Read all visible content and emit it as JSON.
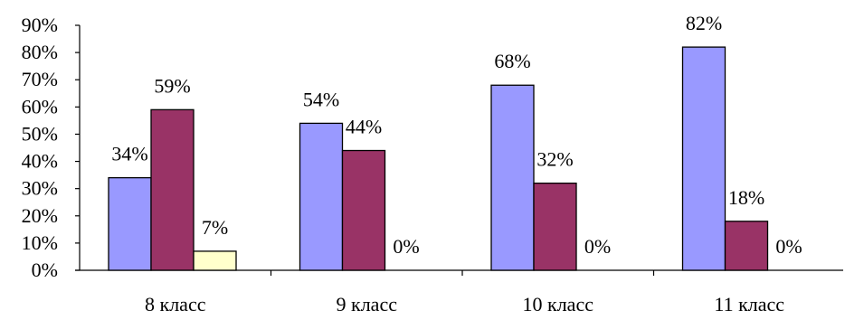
{
  "chart_data": {
    "type": "bar",
    "categories": [
      "8 класс",
      "9 класс",
      "10 класс",
      "11 класс"
    ],
    "series": [
      {
        "values": [
          34,
          54,
          68,
          82
        ],
        "color": "#9999ff"
      },
      {
        "values": [
          59,
          44,
          32,
          18
        ],
        "color": "#993366"
      },
      {
        "values": [
          7,
          0,
          0,
          0
        ],
        "color": "#ffffcc"
      }
    ],
    "data_labels": [
      [
        "34%",
        "54%",
        "68%",
        "82%"
      ],
      [
        "59%",
        "44%",
        "32%",
        "18%"
      ],
      [
        "7%",
        "0%",
        "0%",
        "0%"
      ]
    ],
    "y_ticks": [
      "0%",
      "10%",
      "20%",
      "30%",
      "40%",
      "50%",
      "60%",
      "70%",
      "80%",
      "90%"
    ],
    "ylim": [
      0,
      90
    ],
    "grid": false,
    "legend": false
  }
}
